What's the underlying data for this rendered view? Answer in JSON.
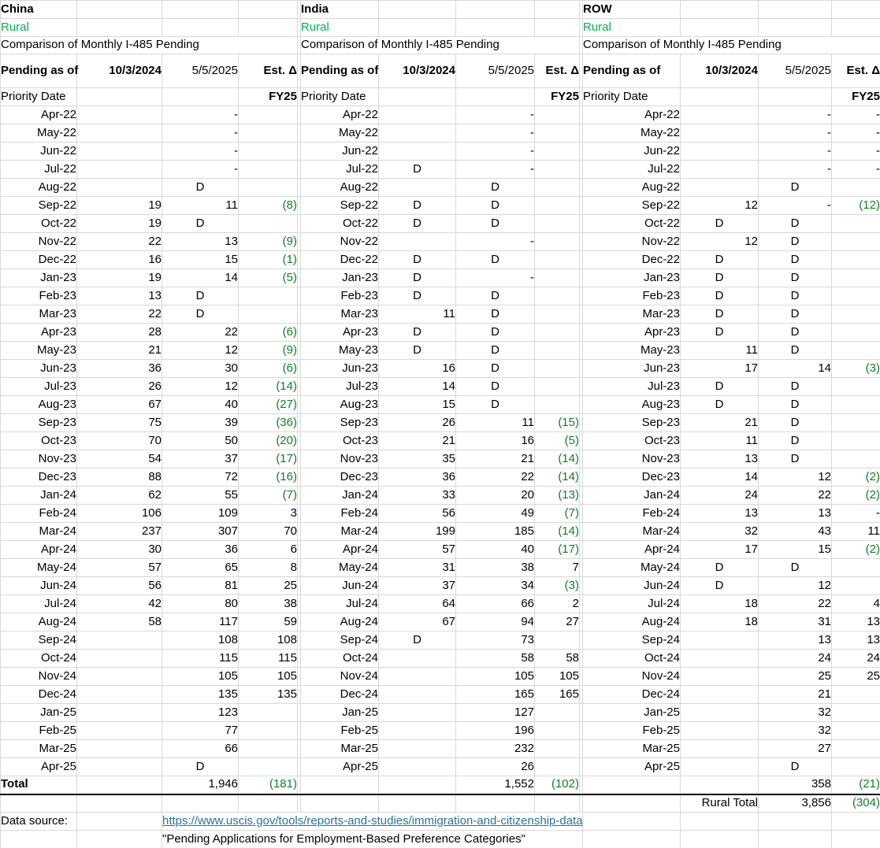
{
  "headers": {
    "pending_as_of": "Pending as of",
    "date1": "10/3/2024",
    "date2": "5/5/2025",
    "delta": "Est. Δ",
    "row_label": "Priority Date",
    "fy": "FY25"
  },
  "tables": [
    {
      "id": "china",
      "title": "China",
      "subtitle": "Rural",
      "caption": "Comparison of Monthly I-485 Pending",
      "rows": [
        [
          "Apr-22",
          "",
          "-",
          "",
          false
        ],
        [
          "May-22",
          "",
          "-",
          "",
          false
        ],
        [
          "Jun-22",
          "",
          "-",
          "",
          false
        ],
        [
          "Jul-22",
          "",
          "-",
          "",
          false
        ],
        [
          "Aug-22",
          "",
          "D",
          "",
          false
        ],
        [
          "Sep-22",
          "19",
          "11",
          "(8)",
          true
        ],
        [
          "Oct-22",
          "19",
          "D",
          "",
          false
        ],
        [
          "Nov-22",
          "22",
          "13",
          "(9)",
          true
        ],
        [
          "Dec-22",
          "16",
          "15",
          "(1)",
          true
        ],
        [
          "Jan-23",
          "19",
          "14",
          "(5)",
          true
        ],
        [
          "Feb-23",
          "13",
          "D",
          "",
          false
        ],
        [
          "Mar-23",
          "22",
          "D",
          "",
          false
        ],
        [
          "Apr-23",
          "28",
          "22",
          "(6)",
          true
        ],
        [
          "May-23",
          "21",
          "12",
          "(9)",
          true
        ],
        [
          "Jun-23",
          "36",
          "30",
          "(6)",
          true
        ],
        [
          "Jul-23",
          "26",
          "12",
          "(14)",
          true
        ],
        [
          "Aug-23",
          "67",
          "40",
          "(27)",
          true
        ],
        [
          "Sep-23",
          "75",
          "39",
          "(36)",
          true
        ],
        [
          "Oct-23",
          "70",
          "50",
          "(20)",
          true
        ],
        [
          "Nov-23",
          "54",
          "37",
          "(17)",
          true
        ],
        [
          "Dec-23",
          "88",
          "72",
          "(16)",
          true
        ],
        [
          "Jan-24",
          "62",
          "55",
          "(7)",
          true
        ],
        [
          "Feb-24",
          "106",
          "109",
          "3",
          false
        ],
        [
          "Mar-24",
          "237",
          "307",
          "70",
          false
        ],
        [
          "Apr-24",
          "30",
          "36",
          "6",
          false
        ],
        [
          "May-24",
          "57",
          "65",
          "8",
          false
        ],
        [
          "Jun-24",
          "56",
          "81",
          "25",
          false
        ],
        [
          "Jul-24",
          "42",
          "80",
          "38",
          false
        ],
        [
          "Aug-24",
          "58",
          "117",
          "59",
          false
        ],
        [
          "Sep-24",
          "",
          "108",
          "108",
          false
        ],
        [
          "Oct-24",
          "",
          "115",
          "115",
          false
        ],
        [
          "Nov-24",
          "",
          "105",
          "105",
          false
        ],
        [
          "Dec-24",
          "",
          "135",
          "135",
          false
        ],
        [
          "Jan-25",
          "",
          "123",
          "",
          false
        ],
        [
          "Feb-25",
          "",
          "77",
          "",
          false
        ],
        [
          "Mar-25",
          "",
          "66",
          "",
          false
        ],
        [
          "Apr-25",
          "",
          "D",
          "",
          false
        ]
      ],
      "total": [
        "Total",
        "",
        "1,946",
        "(181)"
      ]
    },
    {
      "id": "india",
      "title": "India",
      "subtitle": "Rural",
      "caption": "Comparison of Monthly I-485 Pending",
      "rows": [
        [
          "Apr-22",
          "",
          "-",
          "",
          false
        ],
        [
          "May-22",
          "",
          "-",
          "",
          false
        ],
        [
          "Jun-22",
          "",
          "-",
          "",
          false
        ],
        [
          "Jul-22",
          "D",
          "-",
          "",
          false
        ],
        [
          "Aug-22",
          "",
          "D",
          "",
          false
        ],
        [
          "Sep-22",
          "D",
          "D",
          "",
          false
        ],
        [
          "Oct-22",
          "D",
          "D",
          "",
          false
        ],
        [
          "Nov-22",
          "",
          "-",
          "",
          false
        ],
        [
          "Dec-22",
          "D",
          "D",
          "",
          false
        ],
        [
          "Jan-23",
          "D",
          "-",
          "",
          false
        ],
        [
          "Feb-23",
          "D",
          "D",
          "",
          false
        ],
        [
          "Mar-23",
          "11",
          "D",
          "",
          false
        ],
        [
          "Apr-23",
          "D",
          "D",
          "",
          false
        ],
        [
          "May-23",
          "D",
          "D",
          "",
          false
        ],
        [
          "Jun-23",
          "16",
          "D",
          "",
          false
        ],
        [
          "Jul-23",
          "14",
          "D",
          "",
          false
        ],
        [
          "Aug-23",
          "15",
          "D",
          "",
          false
        ],
        [
          "Sep-23",
          "26",
          "11",
          "(15)",
          true
        ],
        [
          "Oct-23",
          "21",
          "16",
          "(5)",
          true
        ],
        [
          "Nov-23",
          "35",
          "21",
          "(14)",
          true
        ],
        [
          "Dec-23",
          "36",
          "22",
          "(14)",
          true
        ],
        [
          "Jan-24",
          "33",
          "20",
          "(13)",
          true
        ],
        [
          "Feb-24",
          "56",
          "49",
          "(7)",
          true
        ],
        [
          "Mar-24",
          "199",
          "185",
          "(14)",
          true
        ],
        [
          "Apr-24",
          "57",
          "40",
          "(17)",
          true
        ],
        [
          "May-24",
          "31",
          "38",
          "7",
          false
        ],
        [
          "Jun-24",
          "37",
          "34",
          "(3)",
          true
        ],
        [
          "Jul-24",
          "64",
          "66",
          "2",
          false
        ],
        [
          "Aug-24",
          "67",
          "94",
          "27",
          false
        ],
        [
          "Sep-24",
          "D",
          "73",
          "",
          false
        ],
        [
          "Oct-24",
          "",
          "58",
          "58",
          false
        ],
        [
          "Nov-24",
          "",
          "105",
          "105",
          false
        ],
        [
          "Dec-24",
          "",
          "165",
          "165",
          false
        ],
        [
          "Jan-25",
          "",
          "127",
          "",
          false
        ],
        [
          "Feb-25",
          "",
          "196",
          "",
          false
        ],
        [
          "Mar-25",
          "",
          "232",
          "",
          false
        ],
        [
          "Apr-25",
          "",
          "26",
          "",
          false
        ]
      ],
      "total": [
        "",
        "",
        "1,552",
        "(102)"
      ]
    },
    {
      "id": "row",
      "title": "ROW",
      "subtitle": "Rural",
      "caption": "Comparison of Monthly I-485 Pending",
      "rows": [
        [
          "Apr-22",
          "",
          "-",
          "-",
          false
        ],
        [
          "May-22",
          "",
          "-",
          "-",
          false
        ],
        [
          "Jun-22",
          "",
          "-",
          "-",
          false
        ],
        [
          "Jul-22",
          "",
          "-",
          "-",
          false
        ],
        [
          "Aug-22",
          "",
          "D",
          "",
          false
        ],
        [
          "Sep-22",
          "12",
          "-",
          "(12)",
          true
        ],
        [
          "Oct-22",
          "D",
          "D",
          "",
          false
        ],
        [
          "Nov-22",
          "12",
          "D",
          "",
          false
        ],
        [
          "Dec-22",
          "D",
          "D",
          "",
          false
        ],
        [
          "Jan-23",
          "D",
          "D",
          "",
          false
        ],
        [
          "Feb-23",
          "D",
          "D",
          "",
          false
        ],
        [
          "Mar-23",
          "D",
          "D",
          "",
          false
        ],
        [
          "Apr-23",
          "D",
          "D",
          "",
          false
        ],
        [
          "May-23",
          "11",
          "D",
          "",
          false
        ],
        [
          "Jun-23",
          "17",
          "14",
          "(3)",
          true
        ],
        [
          "Jul-23",
          "D",
          "D",
          "",
          false
        ],
        [
          "Aug-23",
          "D",
          "D",
          "",
          false
        ],
        [
          "Sep-23",
          "21",
          "D",
          "",
          false
        ],
        [
          "Oct-23",
          "11",
          "D",
          "",
          false
        ],
        [
          "Nov-23",
          "13",
          "D",
          "",
          false
        ],
        [
          "Dec-23",
          "14",
          "12",
          "(2)",
          true
        ],
        [
          "Jan-24",
          "24",
          "22",
          "(2)",
          true
        ],
        [
          "Feb-24",
          "13",
          "13",
          "-",
          false
        ],
        [
          "Mar-24",
          "32",
          "43",
          "11",
          false
        ],
        [
          "Apr-24",
          "17",
          "15",
          "(2)",
          true
        ],
        [
          "May-24",
          "D",
          "D",
          "",
          false
        ],
        [
          "Jun-24",
          "D",
          "12",
          "",
          false
        ],
        [
          "Jul-24",
          "18",
          "22",
          "4",
          false
        ],
        [
          "Aug-24",
          "18",
          "31",
          "13",
          false
        ],
        [
          "Sep-24",
          "",
          "13",
          "13",
          false
        ],
        [
          "Oct-24",
          "",
          "24",
          "24",
          false
        ],
        [
          "Nov-24",
          "",
          "25",
          "25",
          false
        ],
        [
          "Dec-24",
          "",
          "21",
          "",
          false
        ],
        [
          "Jan-25",
          "",
          "32",
          "",
          false
        ],
        [
          "Feb-25",
          "",
          "32",
          "",
          false
        ],
        [
          "Mar-25",
          "",
          "27",
          "",
          false
        ],
        [
          "Apr-25",
          "",
          "D",
          "",
          false
        ]
      ],
      "total": [
        "",
        "",
        "358",
        "(21)"
      ]
    }
  ],
  "rural_total": {
    "label": "Rural Total",
    "value": "3,856",
    "delta": "(304)"
  },
  "footer": {
    "label": "Data source:",
    "link": "https://www.uscis.gov/tools/reports-and-studies/immigration-and-citizenship-data",
    "quote": "\"Pending Applications for Employment-Based Preference Categories\""
  },
  "colors": {
    "subtitle_green": "#00b050",
    "delta_fill_green": "#c6efce",
    "delta_text_green": "#147c28",
    "header_fill_gray": "#d9d9d9",
    "link_teal": "#2873a0",
    "divider_black": "#000000"
  }
}
